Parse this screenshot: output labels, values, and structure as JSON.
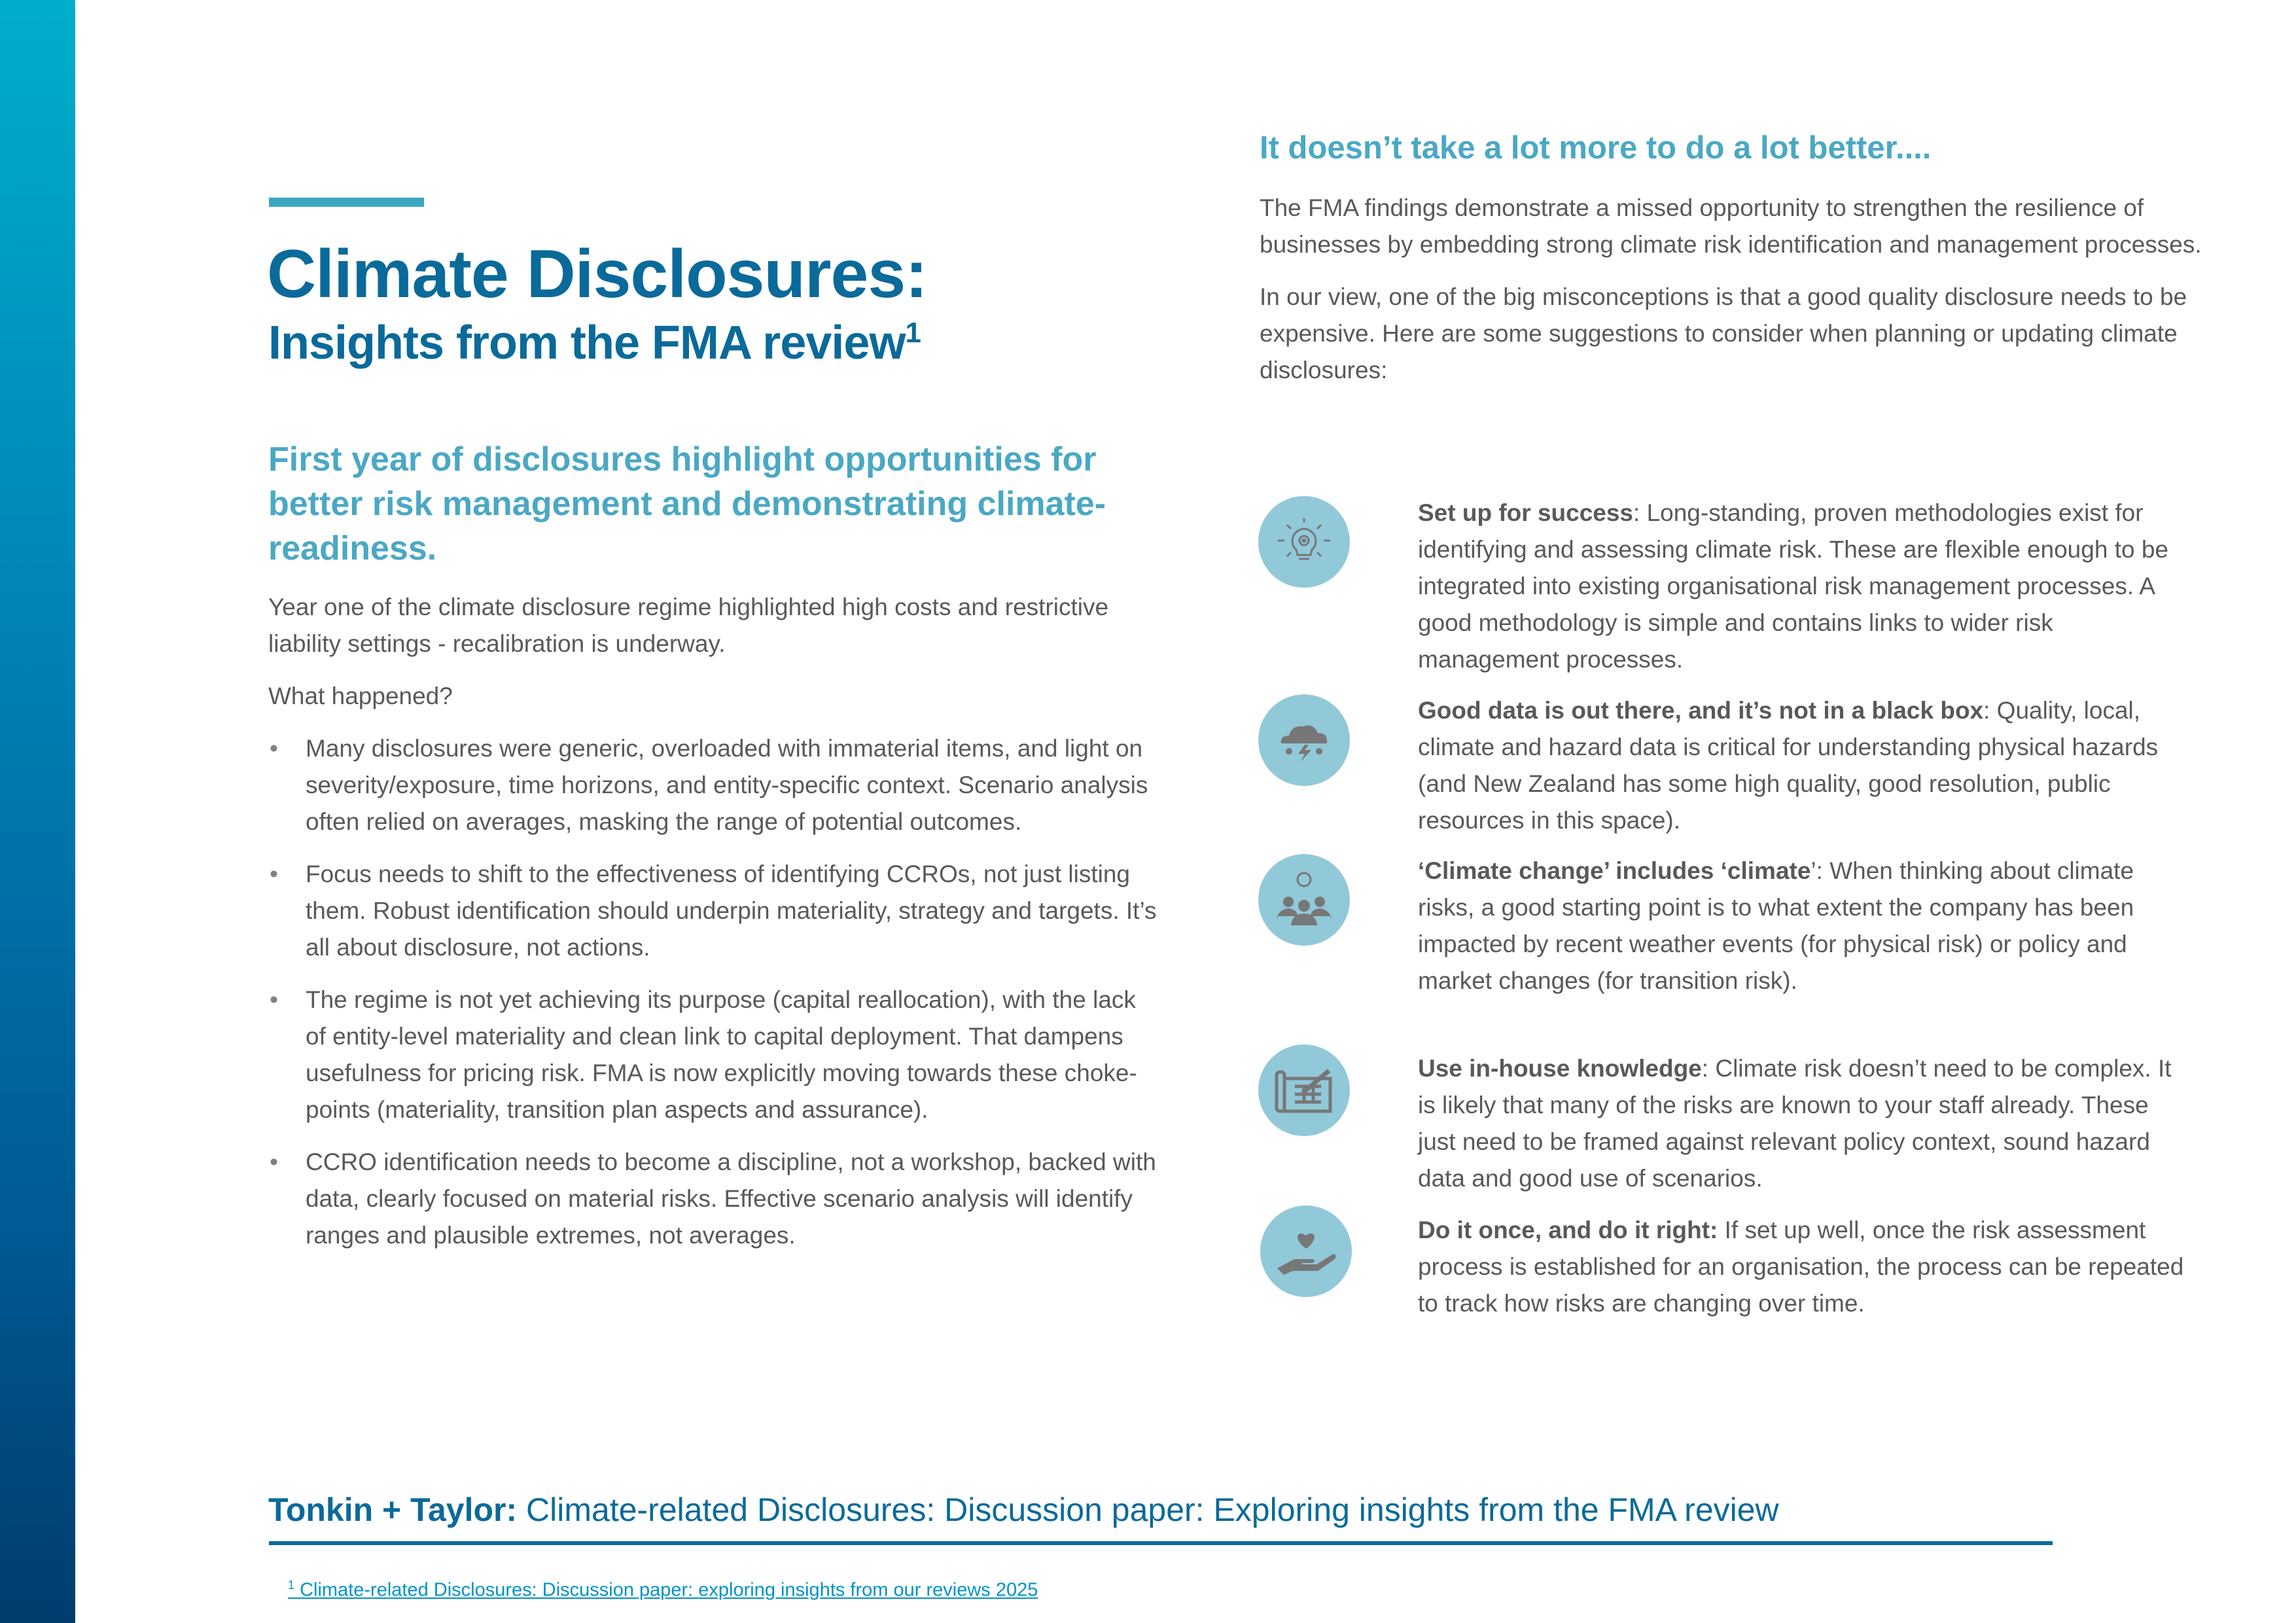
{
  "colors": {
    "primary": "#0a6a9a",
    "accent": "#4aa8c4",
    "icon_bg": "#91c9d9",
    "text": "#595959"
  },
  "header": {
    "title": "Climate Disclosures:",
    "subtitle": "Insights from the FMA review",
    "subtitle_footnote_mark": "1"
  },
  "left": {
    "lead": "First year of disclosures highlight opportunities for better risk management and demonstrating climate-readiness.",
    "intro": "Year one of the climate disclosure regime highlighted high costs and restrictive liability settings - recalibration is underway.",
    "question": "What happened?",
    "bullets": [
      "Many disclosures were generic, overloaded with immaterial items, and light on severity/exposure, time horizons, and entity-specific context. Scenario analysis often relied on averages, masking the range of potential outcomes.",
      "Focus needs to shift to the effectiveness of identifying CCROs, not just listing them. Robust identification should underpin materiality, strategy and targets. It’s all about disclosure, not actions.",
      "The regime is not yet achieving its purpose (capital reallocation), with the lack of entity-level materiality and clean link to capital deployment. That dampens usefulness for pricing risk. FMA is now explicitly moving towards these choke-points (materiality, transition plan aspects and assurance).",
      "CCRO identification needs to become a discipline, not a workshop, backed with data, clearly focused on material risks. Effective scenario analysis will identify ranges and plausible extremes, not averages."
    ]
  },
  "right": {
    "heading": "It doesn’t take a lot more to do a lot better....",
    "para1": "The FMA findings demonstrate a missed opportunity to strengthen the resilience of businesses by embedding strong climate risk identification and management processes.",
    "para2": "In our view, one of the big misconceptions is that a good quality disclosure needs to be expensive. Here are some suggestions to consider when planning or updating climate disclosures:",
    "items": [
      {
        "icon": "lightbulb-gear-icon",
        "title": "Set up for success",
        "text": ": Long-standing, proven methodologies exist for identifying and assessing climate risk. These are flexible enough to be integrated into existing organisational risk management processes. A good methodology is simple and contains links to wider risk management processes."
      },
      {
        "icon": "storm-cloud-icon",
        "title": "Good data is out there, and it’s not in a black box",
        "text": ": Quality, local, climate and hazard data is critical for understanding physical hazards (and New Zealand has some high quality, good resolution, public resources in this space)."
      },
      {
        "icon": "team-idea-icon",
        "title": "‘Climate change’ includes ‘climate",
        "text": "’: When thinking about climate risks, a good starting point is to what extent the company has been impacted by recent weather events (for physical risk) or policy and market changes (for transition risk)."
      },
      {
        "icon": "blueprint-pencil-icon",
        "title": "Use in-house knowledge",
        "text": ": Climate risk doesn’t need to be complex. It is likely that many of the risks are known to your staff already. These just need to be framed against relevant policy context, sound hazard data and good use of scenarios."
      },
      {
        "icon": "hand-heart-icon",
        "title": "Do it once, and do it right:",
        "text": " If set up well, once the risk assessment process is established for an organisation, the process can be repeated to track how risks are changing over time."
      }
    ]
  },
  "footer": {
    "brand": "Tonkin + Taylor:",
    "title": "Climate-related Disclosures: Discussion paper: Exploring insights from the FMA review"
  },
  "footnote": {
    "mark": "1",
    "text": "Climate-related Disclosures: Discussion paper: exploring insights from our reviews 2025"
  }
}
